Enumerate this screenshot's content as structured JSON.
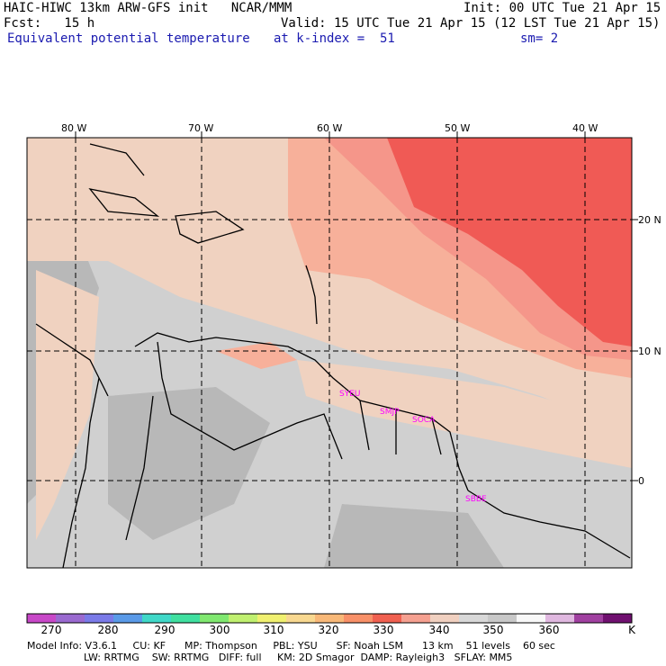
{
  "header": {
    "line1_left": "HAIC-HIWC 13km ARW-GFS init   NCAR/MMM",
    "line1_right": "Init: 00 UTC Tue 21 Apr 15",
    "line2_left": "Fcst:   15 h",
    "line2_right": "Valid: 15 UTC Tue 21 Apr 15 (12 LST Tue 21 Apr 15)",
    "line3_left": "Equivalent potential temperature",
    "line3_mid": "at k-index =  51",
    "line3_right": "sm= 2"
  },
  "map": {
    "lon_labels": [
      "80 W",
      "70 W",
      "60 W",
      "50 W",
      "40 W"
    ],
    "lat_labels": [
      "20 N",
      "10 N",
      "0"
    ],
    "stations": [
      "SYEU",
      "SMJP",
      "SOCA",
      "SBBE"
    ],
    "colors": {
      "cold": "#d0d0d0",
      "grey": "#b8b8b8",
      "tan": "#f0d2c0",
      "peach": "#f7b09a",
      "salmon": "#f5968a",
      "red": "#f05a55"
    }
  },
  "colorbar": {
    "labels": [
      "270",
      "280",
      "290",
      "300",
      "310",
      "320",
      "330",
      "340",
      "350",
      "360",
      "K"
    ],
    "colors": [
      "#c848c8",
      "#9a6ad0",
      "#7a7ae8",
      "#5a9ae8",
      "#40d8c8",
      "#40e0a0",
      "#80e870",
      "#c0f070",
      "#f0f070",
      "#f8d890",
      "#f8b878",
      "#f89068",
      "#f06050",
      "#f5a090",
      "#f0d0c0",
      "#d8d8d8",
      "#c8c8c8",
      "#f8f8f8",
      "#e0b8e0",
      "#a040a0",
      "#701070"
    ]
  },
  "footer": {
    "line1": "Model Info: V3.6.1     CU: KF      MP: Thompson     PBL: YSU      SF: Noah LSM      13 km    51 levels    60 sec",
    "line2": "                  LW: RRTMG    SW: RRTMG   DIFF: full     KM: 2D Smagor  DAMP: Rayleigh3   SFLAY: MM5"
  }
}
